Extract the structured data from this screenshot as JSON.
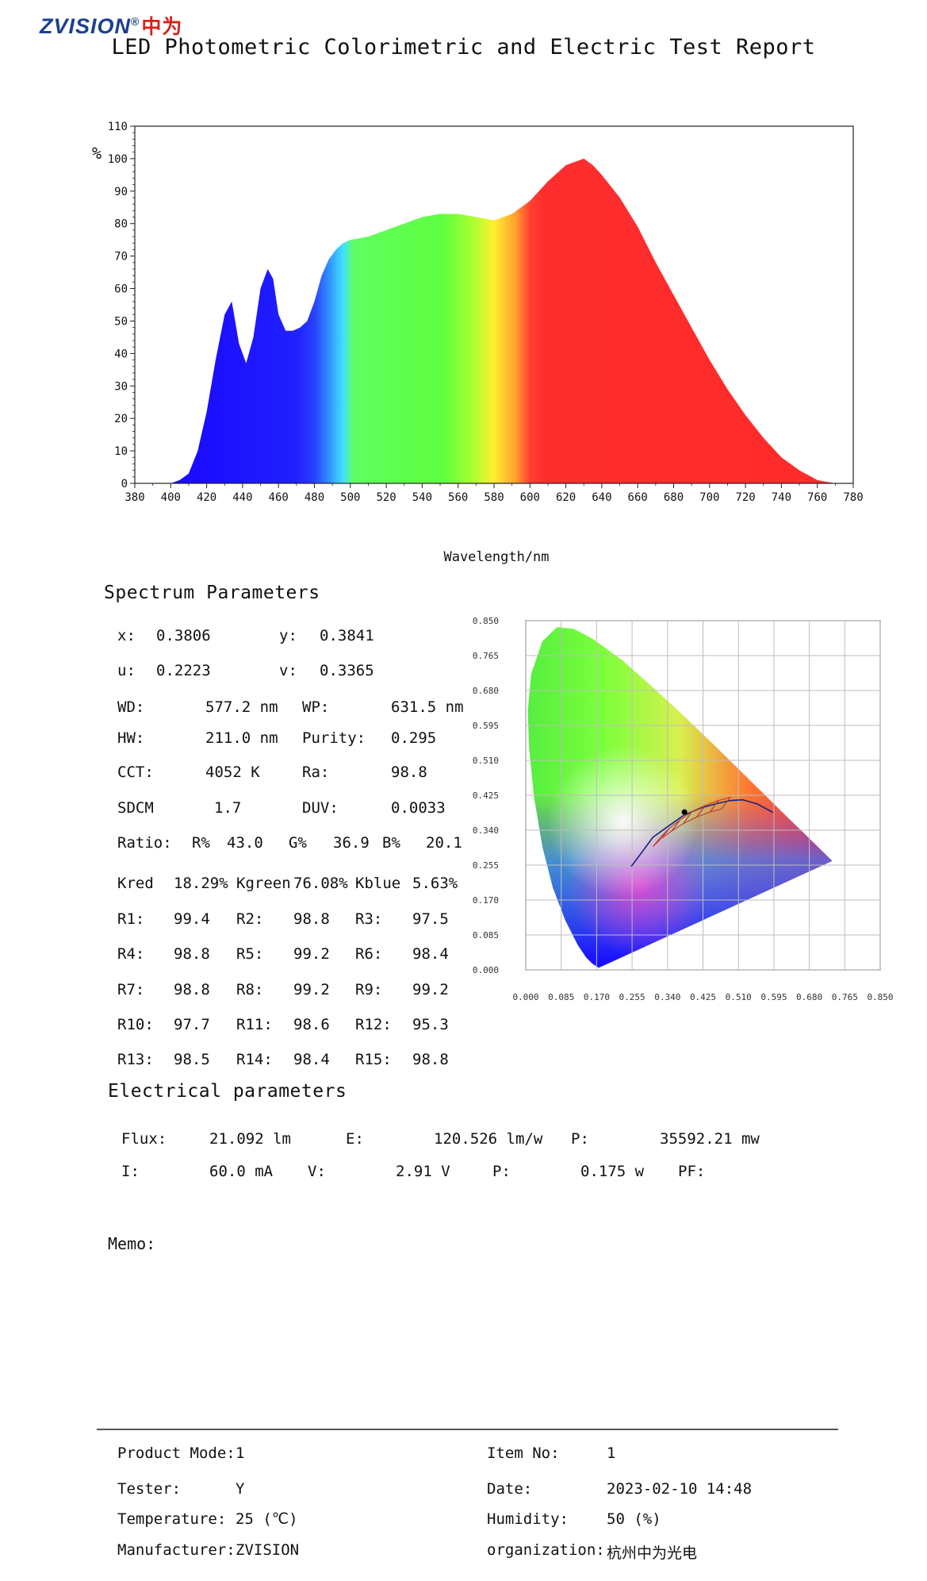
{
  "header": {
    "logo_text": "ZVISION",
    "logo_registered": "®",
    "logo_cn": "中为",
    "title": "LED Photometric Colorimetric and Electric Test Report"
  },
  "chart_data": [
    {
      "type": "area",
      "ylabel": "%",
      "xlabel": "Wavelength/nm",
      "xlim": [
        380,
        780
      ],
      "ylim": [
        0,
        110
      ],
      "x_ticks": [
        380,
        400,
        420,
        440,
        460,
        480,
        500,
        520,
        540,
        560,
        580,
        600,
        620,
        640,
        660,
        680,
        700,
        720,
        740,
        760,
        780
      ],
      "y_ticks": [
        0,
        10,
        20,
        30,
        40,
        50,
        60,
        70,
        80,
        90,
        100,
        110
      ],
      "grid": false,
      "x": [
        380,
        390,
        400,
        405,
        410,
        415,
        420,
        425,
        430,
        434,
        438,
        442,
        446,
        450,
        454,
        457,
        460,
        464,
        468,
        472,
        476,
        480,
        484,
        488,
        492,
        496,
        500,
        510,
        520,
        530,
        540,
        550,
        560,
        570,
        580,
        590,
        600,
        610,
        620,
        625,
        630,
        635,
        640,
        650,
        660,
        670,
        680,
        690,
        700,
        710,
        720,
        730,
        740,
        750,
        760,
        765,
        770,
        780
      ],
      "values": [
        0,
        0,
        0,
        1,
        3,
        10,
        22,
        38,
        52,
        56,
        43,
        37,
        45,
        60,
        66,
        63,
        52,
        47,
        47,
        48,
        50,
        56,
        64,
        69,
        72,
        74,
        75,
        76,
        78,
        80,
        82,
        83,
        83,
        82,
        81,
        83,
        87,
        93,
        98,
        99,
        100,
        98,
        95,
        88,
        79,
        68,
        58,
        48,
        38,
        29,
        21,
        14,
        8,
        4,
        1,
        0.5,
        0,
        0
      ]
    },
    {
      "type": "scatter",
      "title": "",
      "x_ticks": [
        "0.000",
        "0.085",
        "0.170",
        "0.255",
        "0.340",
        "0.425",
        "0.510",
        "0.595",
        "0.680",
        "0.765",
        "0.850"
      ],
      "y_ticks": [
        "0.000",
        "0.085",
        "0.170",
        "0.255",
        "0.340",
        "0.425",
        "0.510",
        "0.595",
        "0.680",
        "0.765",
        "0.850"
      ],
      "xlim": [
        0,
        0.85
      ],
      "ylim": [
        0,
        0.85
      ],
      "grid": true,
      "point": {
        "x": 0.3806,
        "y": 0.3841
      }
    }
  ],
  "spectrum": {
    "section_title": "Spectrum Parameters",
    "x_label": "x:",
    "x_value": "0.3806",
    "y_label": "y:",
    "y_value": "0.3841",
    "u_label": "u:",
    "u_value": "0.2223",
    "v_label": "v:",
    "v_value": "0.3365",
    "wd_label": "WD:",
    "wd_value": "577.2 nm",
    "wp_label": "WP:",
    "wp_value": "631.5 nm",
    "hw_label": "HW:",
    "hw_value": "211.0 nm",
    "purity_label": "Purity:",
    "purity_value": "0.295",
    "cct_label": "CCT:",
    "cct_value": "4052 K",
    "ra_label": "Ra:",
    "ra_value": "98.8",
    "sdcm_label": "SDCM",
    "sdcm_value": "1.7",
    "duv_label": "DUV:",
    "duv_value": "0.0033",
    "ratio_label": "Ratio:",
    "r_pct_label": "R%",
    "r_pct_value": "43.0",
    "g_pct_label": "G%",
    "g_pct_value": "36.9",
    "b_pct_label": "B%",
    "b_pct_value": "20.1",
    "kred_label": "Kred",
    "kred_value": "18.29%",
    "kgreen_label": "Kgreen",
    "kgreen_value": "76.08%",
    "kblue_label": "Kblue",
    "kblue_value": "5.63%",
    "r_rows": [
      [
        {
          "label": "R1:",
          "value": "99.4"
        },
        {
          "label": "R2:",
          "value": "98.8"
        },
        {
          "label": "R3:",
          "value": "97.5"
        }
      ],
      [
        {
          "label": "R4:",
          "value": "98.8"
        },
        {
          "label": "R5:",
          "value": "99.2"
        },
        {
          "label": "R6:",
          "value": "98.4"
        }
      ],
      [
        {
          "label": "R7:",
          "value": "98.8"
        },
        {
          "label": "R8:",
          "value": "99.2"
        },
        {
          "label": "R9:",
          "value": "99.2"
        }
      ],
      [
        {
          "label": "R10:",
          "value": "97.7"
        },
        {
          "label": "R11:",
          "value": "98.6"
        },
        {
          "label": "R12:",
          "value": "95.3"
        }
      ],
      [
        {
          "label": "R13:",
          "value": "98.5"
        },
        {
          "label": "R14:",
          "value": "98.4"
        },
        {
          "label": "R15:",
          "value": "98.8"
        }
      ]
    ]
  },
  "electrical": {
    "section_title": "Electrical parameters",
    "flux_label": "Flux:",
    "flux_value": "21.092 lm",
    "e_label": "E:",
    "e_value": "120.526 lm/w",
    "p1_label": "P:",
    "p1_value": "35592.21 mw",
    "i_label": "I:",
    "i_value": "60.0 mA",
    "v_label": "V:",
    "v_value": "2.91 V",
    "p2_label": "P:",
    "p2_value": "0.175 w",
    "pf_label": "PF:",
    "pf_value": ""
  },
  "memo": {
    "label": "Memo:"
  },
  "footer": {
    "product_label": "Product Mode:",
    "product_value": "1",
    "item_label": "Item No:",
    "item_value": "1",
    "tester_label": "Tester:",
    "tester_value": "Y",
    "date_label": "Date:",
    "date_value": "2023-02-10 14:48",
    "temp_label": "Temperature:",
    "temp_value": "25 (℃)",
    "humidity_label": "Humidity:",
    "humidity_value": "50 (%)",
    "manufacturer_label": "Manufacturer:",
    "manufacturer_value": "ZVISION",
    "org_label": "organization:",
    "org_value": "杭州中为光电"
  }
}
